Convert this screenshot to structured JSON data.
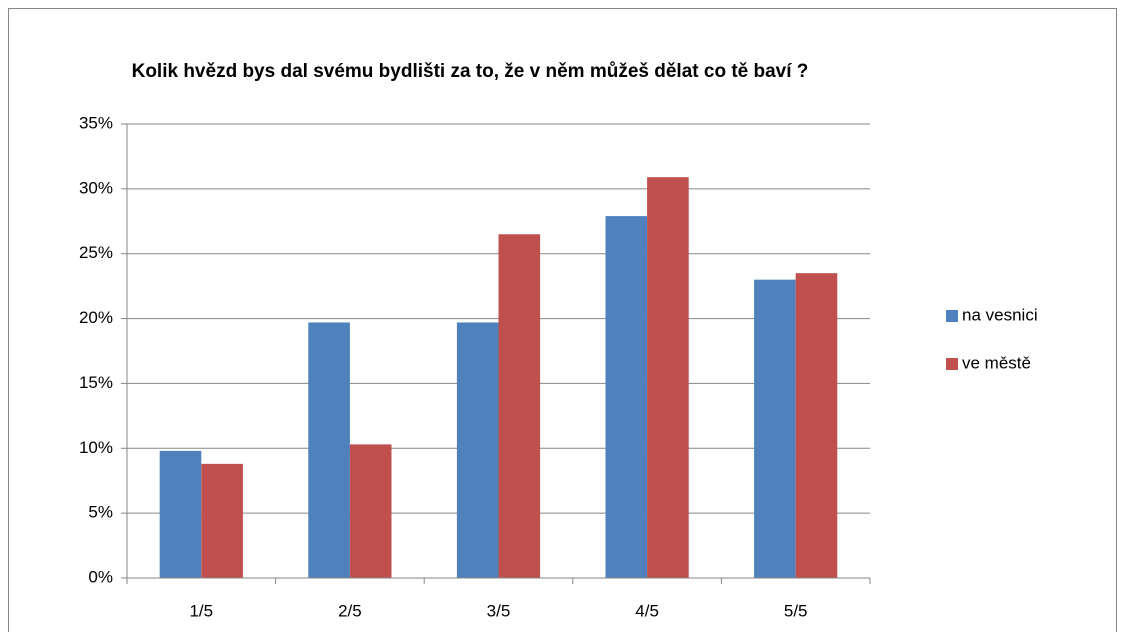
{
  "chart_data": {
    "type": "bar",
    "title": "Kolik hvězd bys dal svému bydlišti za to, že v něm můžeš dělat co tě baví ?",
    "categories": [
      "1/5",
      "2/5",
      "3/5",
      "4/5",
      "5/5"
    ],
    "series": [
      {
        "name": "na vesnici",
        "color": "#4f81bd",
        "values": [
          9.8,
          19.7,
          19.7,
          27.9,
          23.0
        ]
      },
      {
        "name": "ve městě",
        "color": "#c0504d",
        "values": [
          8.8,
          10.3,
          26.5,
          30.9,
          23.5
        ]
      }
    ],
    "ylim": [
      0,
      35
    ],
    "yticks": [
      {
        "value": 0,
        "label": "0%"
      },
      {
        "value": 5,
        "label": "5%"
      },
      {
        "value": 10,
        "label": "10%"
      },
      {
        "value": 15,
        "label": "15%"
      },
      {
        "value": 20,
        "label": "20%"
      },
      {
        "value": 25,
        "label": "25%"
      },
      {
        "value": 30,
        "label": "30%"
      },
      {
        "value": 35,
        "label": "35%"
      }
    ],
    "grid": true,
    "legend": "right"
  }
}
